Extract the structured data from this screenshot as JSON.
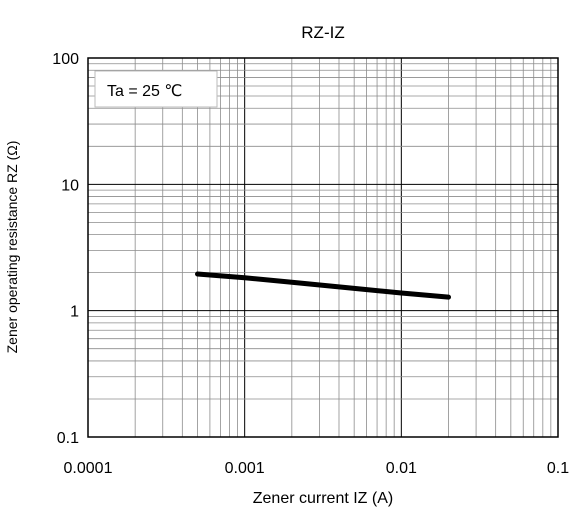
{
  "chart_data": {
    "type": "line",
    "title": "RZ-IZ",
    "xlabel": "Zener current IZ (A)",
    "ylabel": "Zener operating resistance RZ (Ω)",
    "xscale": "log",
    "yscale": "log",
    "xlim": [
      0.0001,
      0.1
    ],
    "ylim": [
      0.1,
      100
    ],
    "xticks": [
      0.0001,
      0.001,
      0.01,
      0.1
    ],
    "xtick_labels": [
      "0.0001",
      "0.001",
      "0.01",
      "0.1"
    ],
    "yticks": [
      0.1,
      1,
      10,
      100
    ],
    "ytick_labels": [
      "0.1",
      "1",
      "10",
      "100"
    ],
    "grid": true,
    "annotation": "Ta = 25 ℃",
    "line_color": "#000000",
    "series": [
      {
        "x": [
          0.0005,
          0.001,
          0.002,
          0.005,
          0.01,
          0.02
        ],
        "y": [
          1.95,
          1.82,
          1.68,
          1.5,
          1.38,
          1.28
        ]
      }
    ]
  }
}
